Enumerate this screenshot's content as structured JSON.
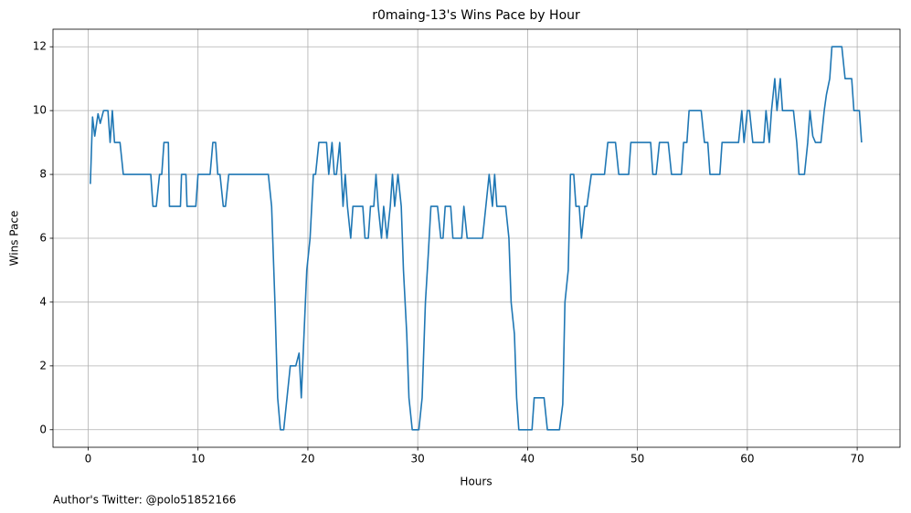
{
  "chart_data": {
    "type": "line",
    "title": "r0maing-13's Wins Pace by Hour",
    "x_label": "Hours",
    "y_label": "Wins Pace",
    "footnote": "Author's Twitter: @polo51852166",
    "grid": true,
    "xlim": [
      -3.2,
      73.9
    ],
    "ylim": [
      -0.55,
      12.55
    ],
    "xticks": [
      0,
      10,
      20,
      30,
      40,
      50,
      60,
      70
    ],
    "yticks": [
      0,
      2,
      4,
      6,
      8,
      10,
      12
    ],
    "x": [
      0.2,
      0.4,
      0.6,
      0.9,
      1.1,
      1.4,
      1.8,
      2.0,
      2.2,
      2.4,
      2.9,
      3.2,
      5.7,
      5.9,
      6.2,
      6.5,
      6.7,
      6.9,
      7.3,
      7.4,
      8.4,
      8.5,
      8.9,
      9.0,
      9.8,
      10.0,
      11.1,
      11.35,
      11.6,
      11.8,
      12.0,
      12.3,
      12.5,
      12.8,
      16.4,
      16.7,
      17.0,
      17.25,
      17.5,
      17.8,
      18.1,
      18.4,
      18.9,
      19.2,
      19.4,
      19.9,
      20.2,
      20.5,
      20.7,
      21.0,
      21.7,
      21.9,
      22.2,
      22.4,
      22.6,
      22.9,
      23.2,
      23.4,
      23.6,
      23.9,
      24.1,
      25.0,
      25.2,
      25.5,
      25.7,
      26.0,
      26.2,
      26.4,
      26.7,
      26.9,
      27.2,
      27.5,
      27.7,
      27.9,
      28.2,
      28.5,
      28.7,
      29.0,
      29.2,
      29.5,
      30.1,
      30.4,
      30.7,
      30.96,
      31.2,
      31.8,
      32.1,
      32.3,
      32.5,
      33.0,
      33.2,
      34.0,
      34.2,
      34.5,
      35.9,
      36.2,
      36.5,
      36.8,
      37.0,
      37.2,
      38.0,
      38.3,
      38.5,
      38.8,
      39.0,
      39.2,
      40.4,
      40.6,
      41.5,
      41.8,
      42.9,
      43.2,
      43.4,
      43.7,
      43.9,
      44.2,
      44.4,
      44.7,
      44.9,
      45.2,
      45.4,
      45.8,
      47.0,
      47.3,
      48.0,
      48.3,
      49.2,
      49.4,
      51.2,
      51.4,
      51.7,
      52.0,
      52.8,
      53.1,
      54.0,
      54.2,
      54.5,
      54.7,
      55.8,
      56.1,
      56.4,
      56.6,
      57.5,
      57.7,
      59.2,
      59.5,
      59.7,
      60.0,
      60.2,
      60.5,
      61.5,
      61.7,
      62.0,
      62.2,
      62.5,
      62.7,
      63.0,
      63.2,
      64.2,
      64.5,
      64.7,
      65.2,
      65.5,
      65.7,
      65.96,
      66.2,
      66.7,
      67.0,
      67.2,
      67.5,
      67.7,
      68.6,
      68.9,
      69.5,
      69.7,
      70.2,
      70.4
    ],
    "series": [
      {
        "color": "#1f77b4",
        "values": [
          7.7,
          9.8,
          9.2,
          9.9,
          9.6,
          10,
          10,
          9,
          10,
          9,
          9,
          8,
          8,
          7,
          7,
          8,
          8,
          9,
          9,
          7,
          7,
          8,
          8,
          7,
          7,
          8,
          8,
          9,
          9,
          8,
          8,
          7,
          7,
          8,
          8,
          7,
          4,
          1,
          0,
          0,
          1,
          2,
          2,
          2.4,
          1,
          5,
          6,
          8,
          8,
          9,
          9,
          8,
          9,
          8,
          8,
          9,
          7,
          8,
          7,
          6,
          7,
          7,
          6,
          6,
          7,
          7,
          8,
          7,
          6,
          7,
          6,
          7,
          8,
          7,
          8,
          7,
          5,
          3,
          1,
          0,
          0,
          1,
          4,
          5.5,
          7,
          7,
          6,
          6,
          7,
          7,
          6,
          6,
          7,
          6,
          6,
          7,
          8,
          7,
          8,
          7,
          7,
          6,
          4,
          3,
          1,
          0,
          0,
          1,
          1,
          0,
          0,
          0.8,
          4,
          5,
          8,
          8,
          7,
          7,
          6,
          7,
          7,
          8,
          8,
          9,
          9,
          8,
          8,
          9,
          9,
          8,
          8,
          9,
          9,
          8,
          8,
          9,
          9,
          10,
          10,
          9,
          9,
          8,
          8,
          9,
          9,
          10,
          9,
          10,
          10,
          9,
          9,
          10,
          9,
          10,
          11,
          10,
          11,
          10,
          10,
          9,
          8,
          8,
          9,
          10,
          9.2,
          9,
          9,
          10,
          10.5,
          11,
          12,
          12,
          11,
          11,
          10,
          10,
          9
        ]
      }
    ]
  }
}
